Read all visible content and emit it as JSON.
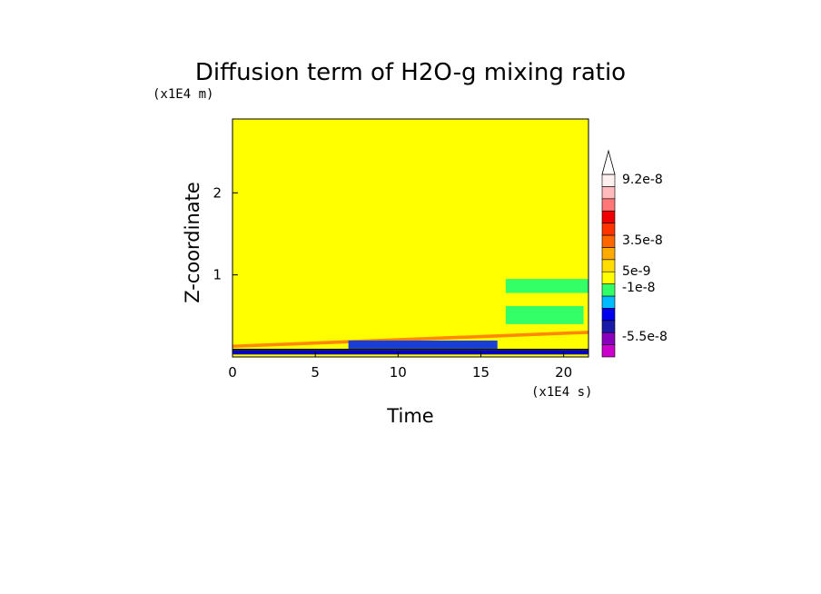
{
  "chart_data": {
    "type": "heatmap",
    "title": "Diffusion term of H2O-g mixing ratio",
    "xlabel": "Time",
    "ylabel": "Z-coordinate",
    "x_unit": "(x1E4 s)",
    "y_unit": "(x1E4 m)",
    "xlim": [
      0,
      21.5
    ],
    "ylim": [
      0,
      2.9
    ],
    "x_ticks": [
      "0",
      "5",
      "10",
      "15",
      "20"
    ],
    "y_ticks": [
      "1",
      "2"
    ],
    "background_level_color": "#ffff00",
    "features": [
      {
        "name": "near-surface negative band",
        "x": [
          0,
          21.5
        ],
        "y": [
          0.03,
          0.08
        ],
        "color": "#0000cc"
      },
      {
        "name": "near-surface dark core",
        "x": [
          0,
          21.5
        ],
        "y": [
          0.08,
          0.1
        ],
        "color": "#111111"
      },
      {
        "name": "rising positive layer",
        "x": [
          0,
          21.5
        ],
        "y_start": [
          0.11,
          0.15
        ],
        "y_end": [
          0.28,
          0.32
        ],
        "color": "#ff8800"
      },
      {
        "name": "negative tongue",
        "x": [
          7,
          16
        ],
        "y": [
          0.1,
          0.2
        ],
        "color": "#1a3fd6"
      },
      {
        "name": "upper green patch",
        "x": [
          16.5,
          21.5
        ],
        "y": [
          0.78,
          0.95
        ],
        "color": "#33ff66"
      },
      {
        "name": "lower green patch",
        "x": [
          16.5,
          21.2
        ],
        "y": [
          0.4,
          0.62
        ],
        "color": "#33ff66"
      }
    ],
    "colorbar": {
      "labels": [
        "9.2e-8",
        "3.5e-8",
        "5e-9",
        "-1e-8",
        "-5.5e-8"
      ],
      "colors": [
        "#cc00cc",
        "#8800bb",
        "#1a1aa8",
        "#0000ee",
        "#00bbff",
        "#33ff66",
        "#ffff00",
        "#ffdd00",
        "#ffaa00",
        "#ff6600",
        "#ff3300",
        "#ee0000",
        "#ff7777",
        "#ffbbbb",
        "#fff0f0"
      ]
    }
  }
}
